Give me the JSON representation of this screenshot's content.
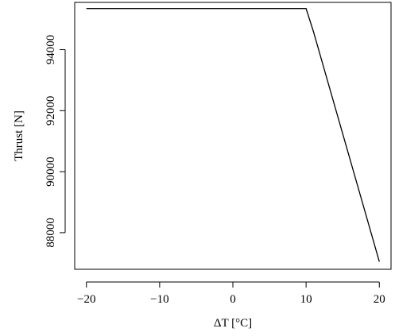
{
  "chart_data": {
    "type": "line",
    "title": "",
    "xlabel": "ΔT [°C]",
    "ylabel": "Thrust [N]",
    "xlim": [
      -21.6,
      21.6
    ],
    "ylim": [
      86800,
      95550
    ],
    "x_ticks": [
      -20,
      -10,
      0,
      10,
      20
    ],
    "x_tick_labels": [
      "−20",
      "−10",
      "0",
      "10",
      "20"
    ],
    "y_ticks": [
      88000,
      90000,
      92000,
      94000
    ],
    "y_tick_labels": [
      "88000",
      "90000",
      "92000",
      "94000"
    ],
    "grid": false,
    "legend": "none",
    "series": [
      {
        "x": [
          -20,
          10,
          11,
          20
        ],
        "y": [
          95350,
          95350,
          94600,
          87050
        ]
      }
    ]
  }
}
